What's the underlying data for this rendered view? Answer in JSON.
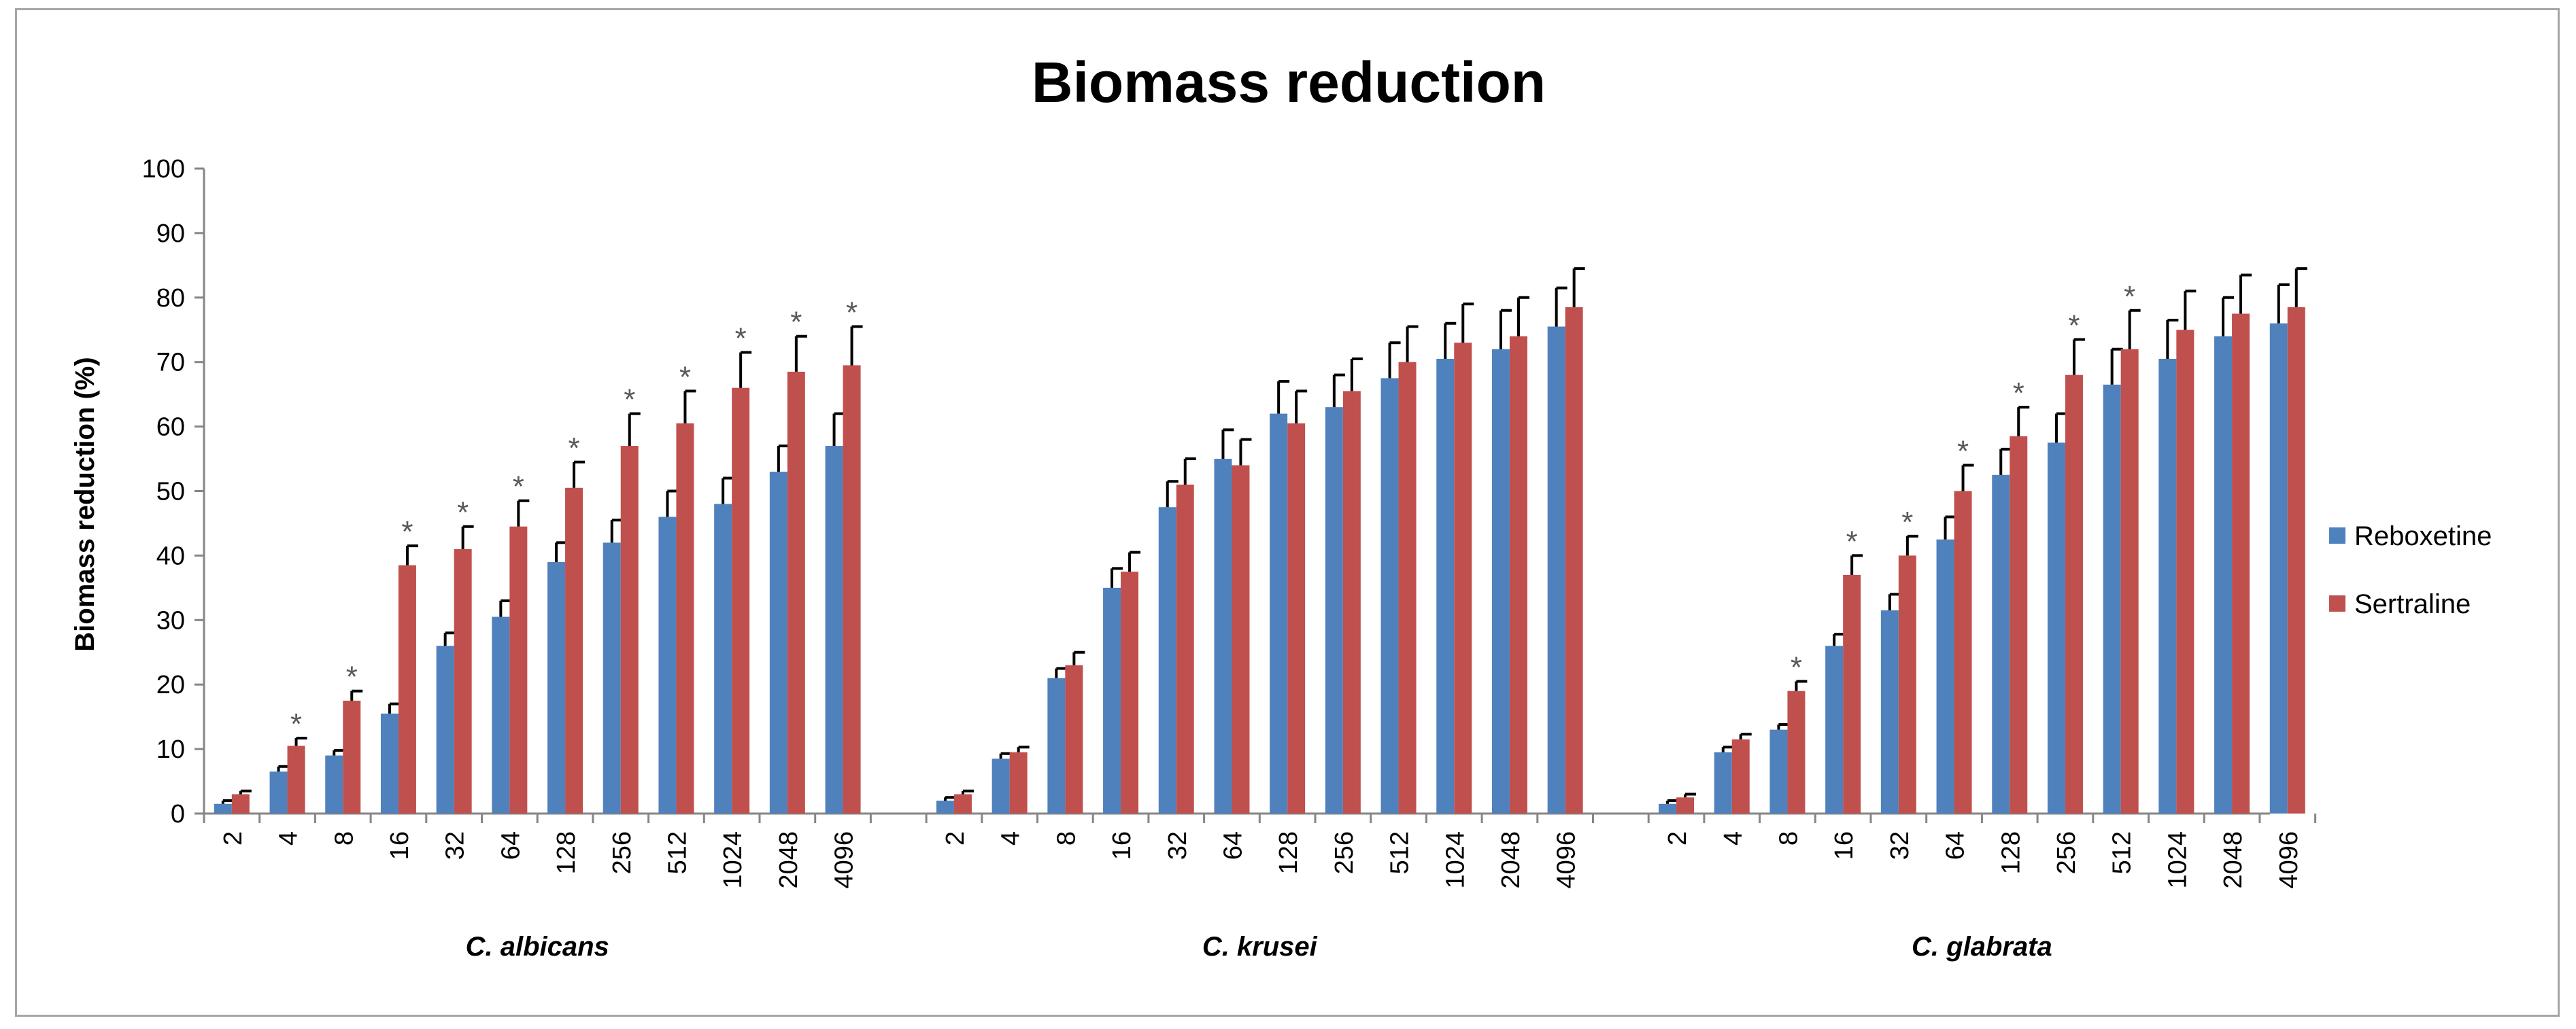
{
  "chart_data": {
    "type": "bar",
    "title": "Biomass reduction",
    "ylabel": "Biomass reduction (%)",
    "xlabel": "",
    "ylim": [
      0,
      100
    ],
    "yticks": [
      0,
      10,
      20,
      30,
      40,
      50,
      60,
      70,
      80,
      90,
      100
    ],
    "grid": false,
    "legend_position": "right",
    "series": [
      {
        "name": "Reboxetine",
        "color": "#4f81bd"
      },
      {
        "name": "Sertraline",
        "color": "#c0504d"
      }
    ],
    "significance_marker": "*",
    "groups": [
      {
        "label": "C. albicans",
        "categories": [
          "2",
          "4",
          "8",
          "16",
          "32",
          "64",
          "128",
          "256",
          "512",
          "1024",
          "2048",
          "4096"
        ],
        "reboxetine": [
          1.5,
          6.5,
          9.0,
          15.5,
          26.0,
          30.5,
          39.0,
          42.0,
          46.0,
          48.0,
          53.0,
          57.0
        ],
        "reboxetine_err": [
          0.5,
          0.8,
          0.8,
          1.5,
          2.0,
          2.5,
          3.0,
          3.5,
          4.0,
          4.0,
          4.0,
          5.0
        ],
        "sertraline": [
          3.0,
          10.5,
          17.5,
          38.5,
          41.0,
          44.5,
          50.5,
          57.0,
          60.5,
          66.0,
          68.5,
          69.5
        ],
        "sertraline_err": [
          0.5,
          1.2,
          1.5,
          3.0,
          3.5,
          4.0,
          4.0,
          5.0,
          5.0,
          5.5,
          5.5,
          6.0
        ],
        "significant": [
          false,
          true,
          true,
          true,
          true,
          true,
          true,
          true,
          true,
          true,
          true,
          true
        ]
      },
      {
        "label": "C. krusei",
        "categories": [
          "2",
          "4",
          "8",
          "16",
          "32",
          "64",
          "128",
          "256",
          "512",
          "1024",
          "2048",
          "4096"
        ],
        "reboxetine": [
          2.0,
          8.5,
          21.0,
          35.0,
          47.5,
          55.0,
          62.0,
          63.0,
          67.5,
          70.5,
          72.0,
          75.5
        ],
        "reboxetine_err": [
          0.5,
          0.8,
          1.5,
          3.0,
          4.0,
          4.5,
          5.0,
          5.0,
          5.5,
          5.5,
          6.0,
          6.0
        ],
        "sertraline": [
          3.0,
          9.5,
          23.0,
          37.5,
          51.0,
          54.0,
          60.5,
          65.5,
          70.0,
          73.0,
          74.0,
          78.5
        ],
        "sertraline_err": [
          0.5,
          0.8,
          2.0,
          3.0,
          4.0,
          4.0,
          5.0,
          5.0,
          5.5,
          6.0,
          6.0,
          6.0
        ],
        "significant": [
          false,
          false,
          false,
          false,
          false,
          false,
          false,
          false,
          false,
          false,
          false,
          false
        ]
      },
      {
        "label": "C. glabrata",
        "categories": [
          "2",
          "4",
          "8",
          "16",
          "32",
          "64",
          "128",
          "256",
          "512",
          "1024",
          "2048",
          "4096"
        ],
        "reboxetine": [
          1.5,
          9.5,
          13.0,
          26.0,
          31.5,
          42.5,
          52.5,
          57.5,
          66.5,
          70.5,
          74.0,
          76.0
        ],
        "reboxetine_err": [
          0.5,
          0.8,
          0.8,
          1.8,
          2.5,
          3.5,
          4.0,
          4.5,
          5.5,
          6.0,
          6.0,
          6.0
        ],
        "sertraline": [
          2.5,
          11.5,
          19.0,
          37.0,
          40.0,
          50.0,
          58.5,
          68.0,
          72.0,
          75.0,
          77.5,
          78.5
        ],
        "sertraline_err": [
          0.5,
          0.8,
          1.5,
          3.0,
          3.0,
          4.0,
          4.5,
          5.5,
          6.0,
          6.0,
          6.0,
          6.0
        ],
        "significant": [
          false,
          false,
          true,
          true,
          true,
          true,
          true,
          true,
          true,
          false,
          false,
          false
        ]
      }
    ]
  }
}
